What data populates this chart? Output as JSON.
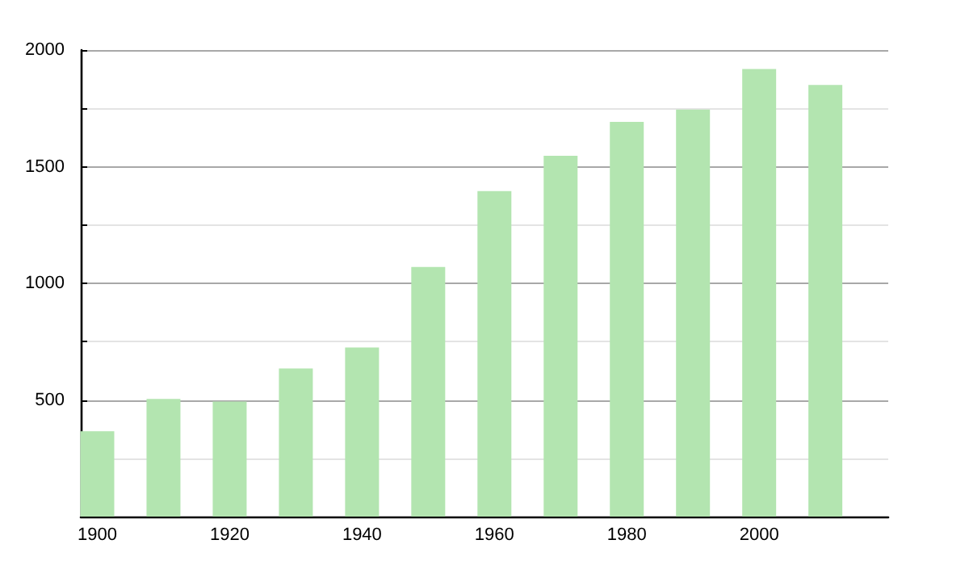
{
  "chart_data": {
    "type": "bar",
    "x": [
      1900,
      1910,
      1920,
      1930,
      1940,
      1950,
      1960,
      1970,
      1980,
      1990,
      2000,
      2010
    ],
    "values": [
      366,
      504,
      493,
      635,
      725,
      1070,
      1395,
      1547,
      1692,
      1745,
      1919,
      1850
    ],
    "color": "#b3e5b0",
    "xlim": [
      1897.5,
      2019.5
    ],
    "xticks": [
      1900,
      1920,
      1940,
      1960,
      1980,
      2000
    ],
    "ylim": [
      0,
      2000
    ],
    "yticks": [
      {
        "value": 250,
        "label": null
      },
      500,
      {
        "value": 750,
        "label": null
      },
      1000,
      {
        "value": 1250,
        "label": null
      },
      1500,
      {
        "value": 1750,
        "label": null
      },
      2000
    ],
    "grid": "y"
  }
}
